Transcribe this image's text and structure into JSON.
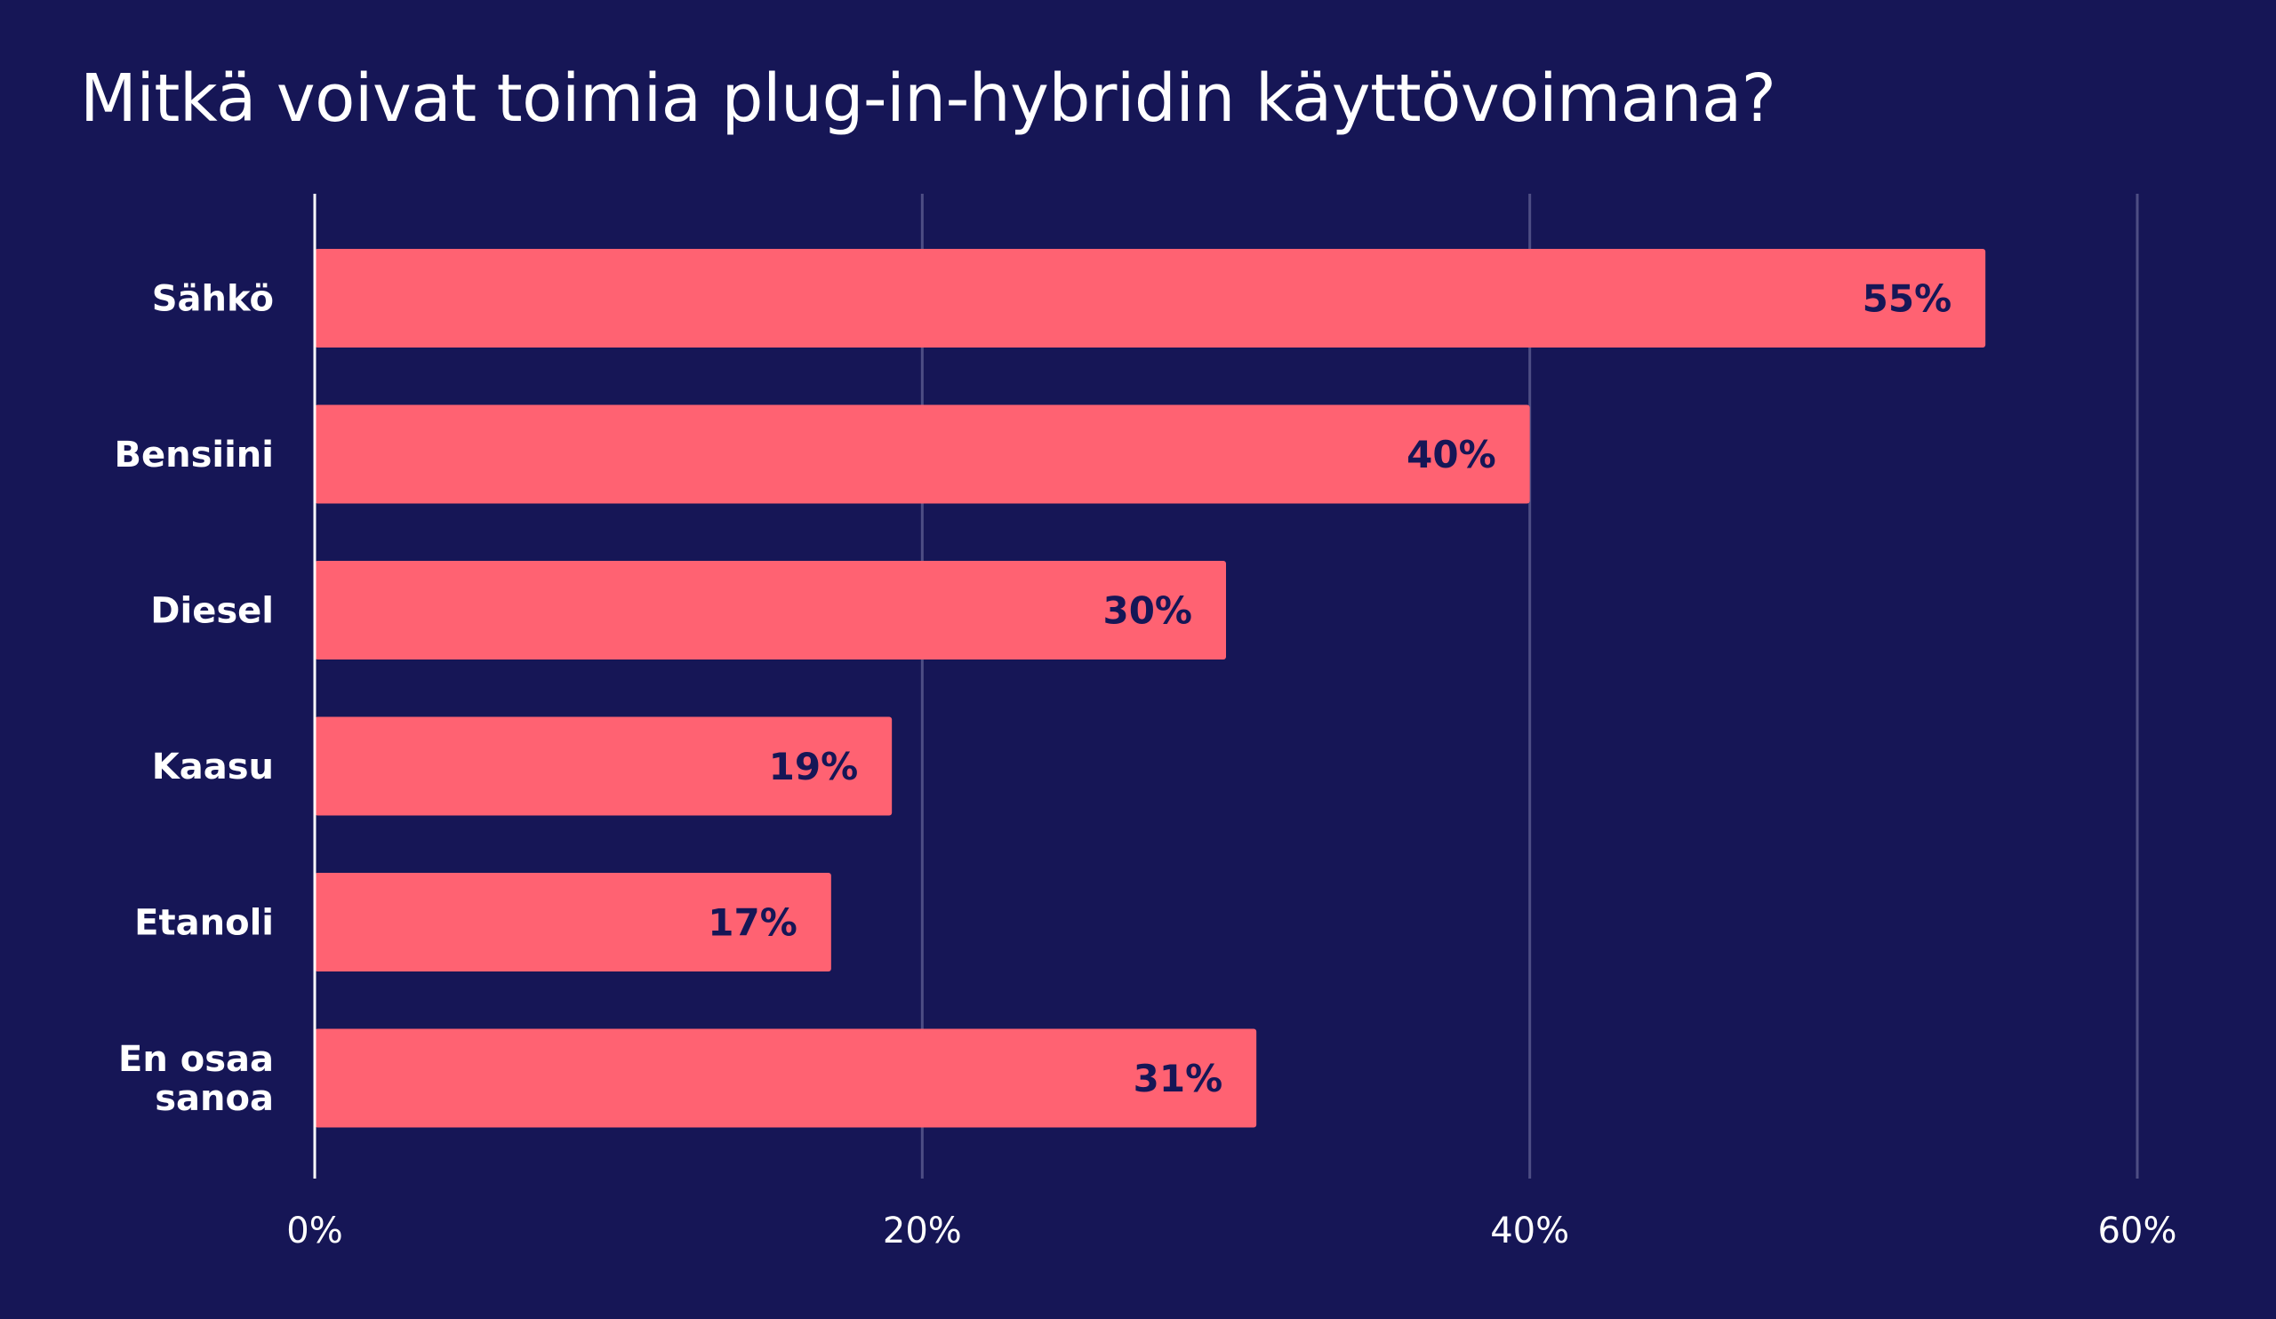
{
  "chart_data": {
    "type": "bar",
    "orientation": "horizontal",
    "title": "Mitkä voivat toimia plug-in-hybridin käyttövoimana?",
    "categories": [
      "Sähkö",
      "Bensiini",
      "Diesel",
      "Kaasu",
      "Etanoli",
      "En osaa sanoa"
    ],
    "values": [
      55,
      40,
      30,
      19,
      17,
      31
    ],
    "value_labels": [
      "55%",
      "40%",
      "30%",
      "19%",
      "17%",
      "31%"
    ],
    "xlim": [
      0,
      60
    ],
    "x_ticks": [
      0,
      20,
      40,
      60
    ],
    "x_tick_labels": [
      "0%",
      "20%",
      "40%",
      "60%"
    ],
    "grid": true,
    "colors": {
      "background": "#161656",
      "bar": "#ff6272",
      "grid": "#4e4e84",
      "axis": "#ffffff",
      "text": "#ffffff",
      "value_text": "#161656"
    }
  }
}
